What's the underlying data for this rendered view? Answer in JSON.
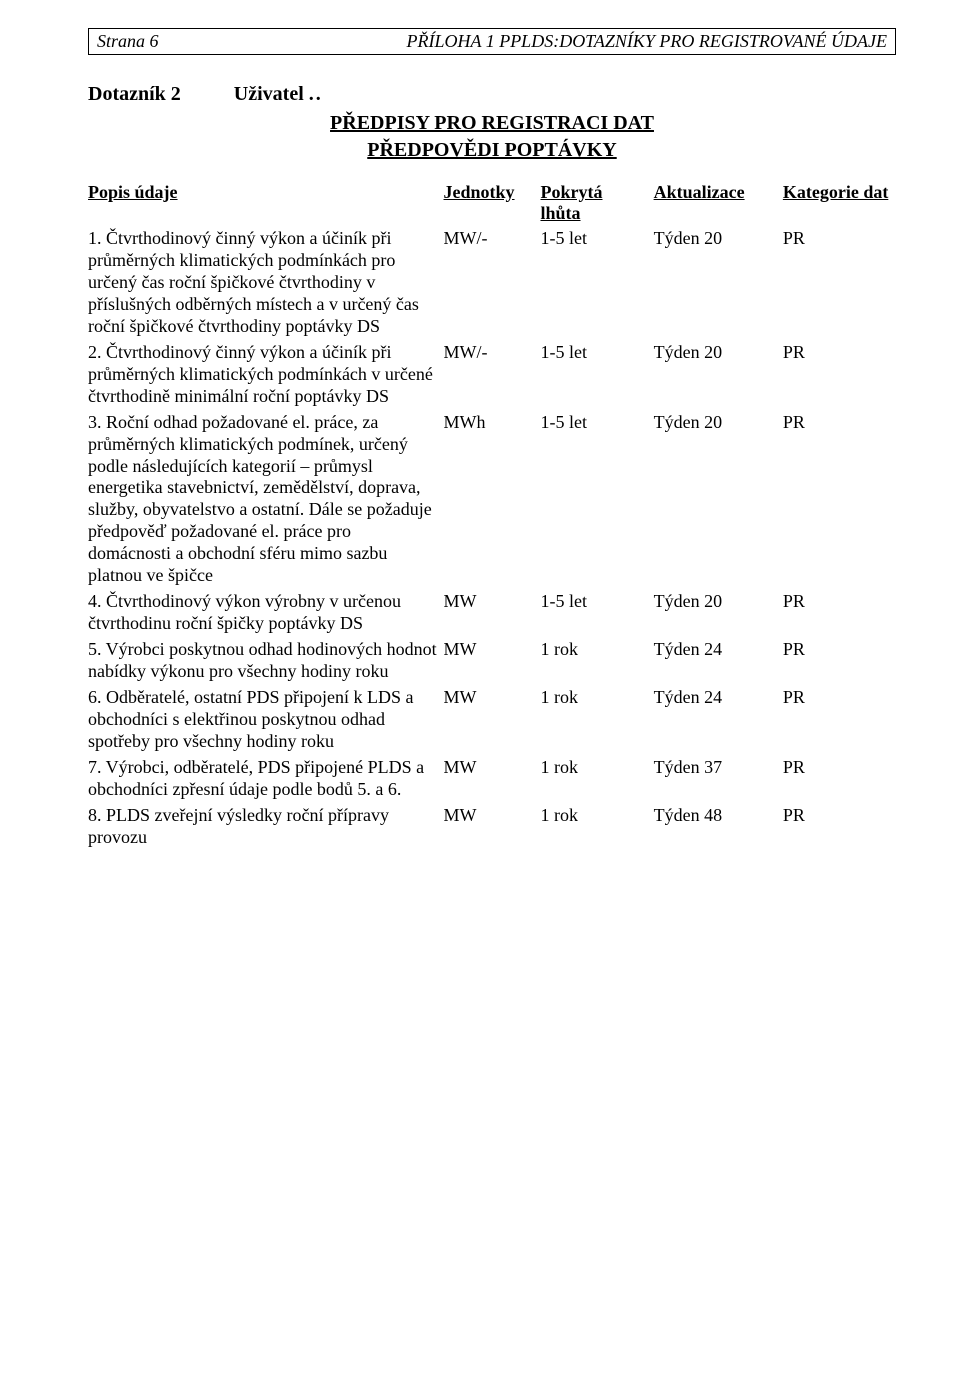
{
  "header": {
    "left": "Strana 6",
    "right": "PŘÍLOHA 1 PPLDS:DOTAZNÍKY PRO REGISTROVANÉ ÚDAJE"
  },
  "title": {
    "label": "Dotazník 2",
    "user": "Uživatel",
    "dots": ".."
  },
  "subtitle1": "PŘEDPISY PRO REGISTRACI DAT",
  "subtitle2": "PŘEDPOVĚDI POPTÁVKY",
  "columns": {
    "desc": "Popis údaje",
    "unit": "Jednotky",
    "cover_line1": "Pokrytá",
    "cover_line2": "lhůta",
    "update": "Aktualizace",
    "cat": "Kategorie dat"
  },
  "rows": [
    {
      "desc": "1. Čtvrthodinový činný výkon a účiník při průměrných klimatických podmínkách pro určený čas roční špičkové čtvrthodiny v příslušných odběrných místech a v určený čas roční špičkové čtvrthodiny poptávky DS",
      "unit": "MW/-",
      "cover": "1-5 let",
      "update": "Týden 20",
      "cat": "PR"
    },
    {
      "desc": "2. Čtvrthodinový činný výkon a účiník při průměrných klimatických podmínkách v určené čtvrthodině minimální roční poptávky DS",
      "unit": "MW/-",
      "cover": "1-5 let",
      "update": "Týden 20",
      "cat": "PR"
    },
    {
      "desc": "3. Roční odhad požadované el. práce, za průměrných klimatických podmínek, určený podle následujících kategorií – průmysl energetika stavebnictví, zemědělství, doprava, služby, obyvatelstvo a ostatní. Dále se požaduje předpověď požadované el. práce pro domácnosti a obchodní sféru mimo sazbu platnou ve špičce",
      "unit": "MWh",
      "cover": "1-5 let",
      "update": "Týden 20",
      "cat": "PR"
    },
    {
      "desc": "4. Čtvrthodinový výkon výrobny v určenou čtvrthodinu roční špičky poptávky DS",
      "unit": "MW",
      "cover": "1-5 let",
      "update": "Týden 20",
      "cat": "PR"
    },
    {
      "desc": "5. Výrobci poskytnou odhad hodinových hodnot nabídky výkonu pro všechny hodiny roku",
      "unit": "MW",
      "cover": "1 rok",
      "update": "Týden 24",
      "cat": "PR"
    },
    {
      "desc": "6. Odběratelé, ostatní PDS připojení k LDS a obchodníci s elektřinou poskytnou odhad spotřeby pro všechny hodiny roku",
      "unit": "MW",
      "cover": "1 rok",
      "update": "Týden 24",
      "cat": "PR"
    },
    {
      "desc": "7. Výrobci, odběratelé, PDS připojené PLDS a obchodníci zpřesní údaje podle bodů 5. a 6.",
      "unit": "MW",
      "cover": "1 rok",
      "update": "Týden 37",
      "cat": "PR"
    },
    {
      "desc": "8. PLDS zveřejní výsledky roční přípravy provozu",
      "unit": "MW",
      "cover": "1 rok",
      "update": "Týden 48",
      "cat": "PR"
    }
  ]
}
